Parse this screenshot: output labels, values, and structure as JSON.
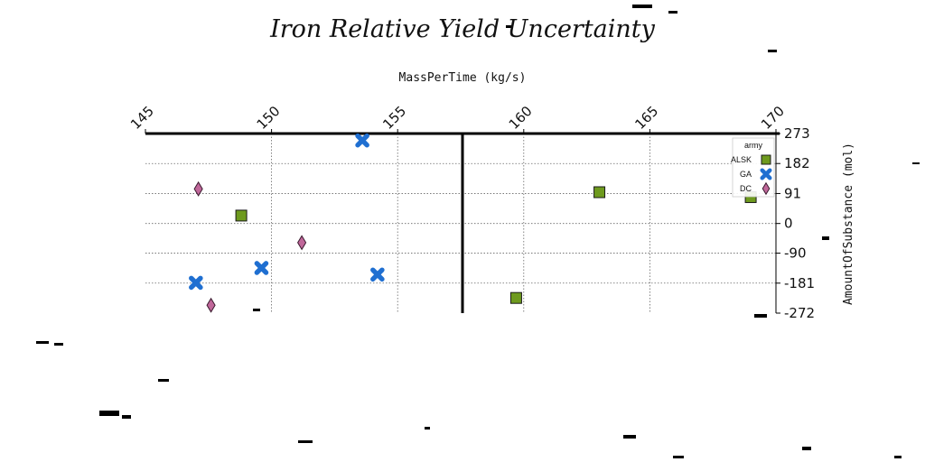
{
  "chart_data": {
    "type": "scatter",
    "title": "Iron Relative Yield Uncertainty",
    "xlabel": "MassPerTime (kg/s)",
    "ylabel": "AmountOfSubstance (mol)",
    "xlim": [
      145,
      170
    ],
    "ylim": [
      -272,
      273
    ],
    "x_ticks": [
      "145",
      "150",
      "155",
      "160",
      "165",
      "170"
    ],
    "y_ticks": [
      "273",
      "182",
      "91",
      "0",
      "-90",
      "-181",
      "-272"
    ],
    "x_axis_position": "top",
    "y_axis_position": "right",
    "grid": true,
    "legend": {
      "title": "army",
      "placement": "top-right"
    },
    "series": [
      {
        "name": "ALSK",
        "marker": "square",
        "color": "#6e9a1e",
        "points": [
          {
            "x": 148.8,
            "y": 24
          },
          {
            "x": 159.7,
            "y": -226
          },
          {
            "x": 163.0,
            "y": 95
          },
          {
            "x": 169.0,
            "y": 80
          }
        ]
      },
      {
        "name": "GA",
        "marker": "x",
        "color": "#1f6fd1",
        "points": [
          {
            "x": 153.6,
            "y": 252
          },
          {
            "x": 149.6,
            "y": -135
          },
          {
            "x": 154.2,
            "y": -155
          },
          {
            "x": 147.0,
            "y": -180
          }
        ]
      },
      {
        "name": "DC",
        "marker": "diamond",
        "color": "#c0679a",
        "points": [
          {
            "x": 147.1,
            "y": 105
          },
          {
            "x": 151.2,
            "y": -58
          },
          {
            "x": 147.6,
            "y": -248
          }
        ]
      }
    ]
  }
}
